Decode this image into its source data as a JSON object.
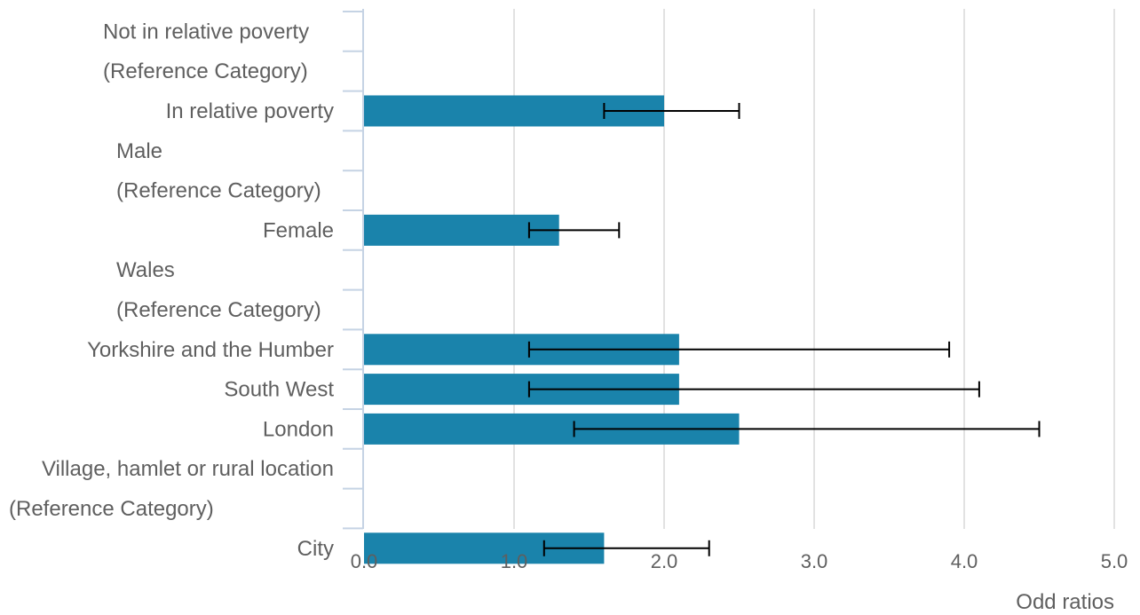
{
  "chart_data": {
    "type": "bar",
    "orientation": "horizontal",
    "xlabel": "Odd ratios",
    "xlim": [
      0,
      5
    ],
    "x_ticks": [
      "0.0",
      "1.0",
      "2.0",
      "3.0",
      "4.0",
      "5.0"
    ],
    "grid": true,
    "colors": {
      "bar": "#1a83ab",
      "error_bar": "#000000",
      "grid": "#e2e2e2",
      "axis": "#c5d3e4",
      "text": "#5f5f5f"
    },
    "rows": [
      {
        "label": "Not in relative poverty",
        "value": null
      },
      {
        "label": "(Reference Category)",
        "value": null
      },
      {
        "label": "In relative poverty",
        "value": 2.0,
        "ci": [
          1.6,
          2.5
        ]
      },
      {
        "label": "Male",
        "value": null
      },
      {
        "label": "(Reference Category)",
        "value": null
      },
      {
        "label": "Female",
        "value": 1.3,
        "ci": [
          1.1,
          1.7
        ]
      },
      {
        "label": "Wales",
        "value": null
      },
      {
        "label": "(Reference Category)",
        "value": null
      },
      {
        "label": "Yorkshire and the Humber",
        "value": 2.1,
        "ci": [
          1.1,
          3.9
        ]
      },
      {
        "label": "South West",
        "value": 2.1,
        "ci": [
          1.1,
          4.1
        ]
      },
      {
        "label": "London",
        "value": 2.5,
        "ci": [
          1.4,
          4.5
        ]
      },
      {
        "label": "Village, hamlet or rural location",
        "value": null
      },
      {
        "label": "(Reference Category)",
        "value": null
      },
      {
        "label": "City",
        "value": 1.6,
        "ci": [
          1.2,
          2.3
        ]
      }
    ]
  }
}
